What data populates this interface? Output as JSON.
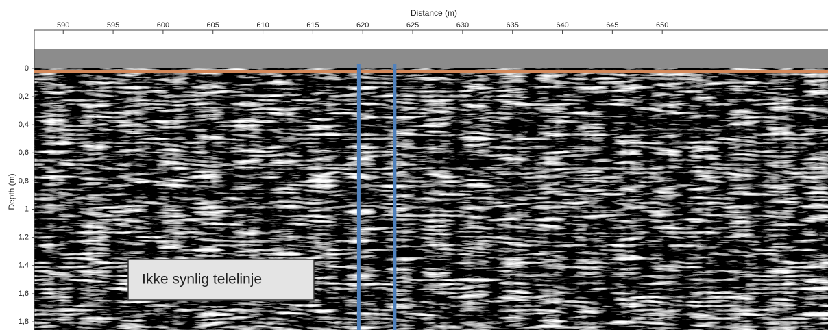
{
  "chart_data": {
    "type": "radargram",
    "x_label": "Distance (m)",
    "y_label": "Depth (m)",
    "xlim": [
      587.1,
      666.6
    ],
    "xticks": [
      590,
      595,
      600,
      605,
      610,
      615,
      620,
      625,
      630,
      635,
      640,
      645,
      650
    ],
    "ylim": [
      -0.272,
      1.858
    ],
    "y_inverted": true,
    "yticks": [
      0,
      {
        "value": 0.2,
        "label": "0,2"
      },
      {
        "value": 0.4,
        "label": "0,4"
      },
      {
        "value": 0.6,
        "label": "0,6"
      },
      {
        "value": 0.8,
        "label": "0,8"
      },
      1,
      {
        "value": 1.2,
        "label": "1,2"
      },
      {
        "value": 1.4,
        "label": "1,4"
      },
      {
        "value": 1.6,
        "label": "1,6"
      },
      {
        "value": 1.8,
        "label": "1,8"
      }
    ],
    "hline": {
      "y": 0.02,
      "color": "#d4895a"
    },
    "vlines": [
      {
        "x": 619.6,
        "color": "#4f81bd"
      },
      {
        "x": 623.2,
        "color": "#4f81bd"
      }
    ],
    "annotation": {
      "text": "Ikke synlig telelinje"
    }
  }
}
